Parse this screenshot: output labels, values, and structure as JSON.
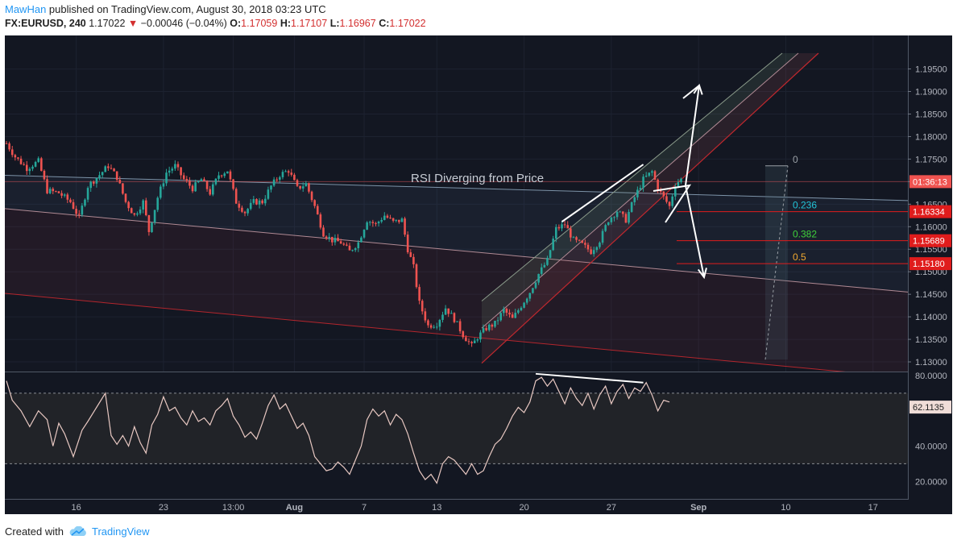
{
  "header": {
    "author": "MawHan",
    "published_text": "published on TradingView.com, August 30, 2018 03:23 UTC",
    "symbol": "FX:EURUSD, 240",
    "last": "1.17022",
    "change": "−0.00046 (−0.04%)",
    "ohlc": [
      {
        "label": "O:",
        "value": "1.17059"
      },
      {
        "label": "H:",
        "value": "1.17107"
      },
      {
        "label": "L:",
        "value": "1.16967"
      },
      {
        "label": "C:",
        "value": "1.17022"
      }
    ]
  },
  "footer": {
    "created_with": "Created with",
    "brand": "TradingView"
  },
  "chart_data": {
    "type": "candlestick",
    "symbol": "EURUSD",
    "interval": "240",
    "price_axis": {
      "ticks": [
        "1.19500",
        "1.19000",
        "1.18500",
        "1.18000",
        "1.17500",
        "1.17000",
        "1.16500",
        "1.16000",
        "1.15500",
        "1.15000",
        "1.14500",
        "1.14000",
        "1.13500",
        "1.13000"
      ],
      "range": [
        1.1275,
        1.1985
      ]
    },
    "price_labels": [
      {
        "value": 1.17,
        "text": "01:36:13",
        "color": "#ef5350"
      },
      {
        "value": 1.16334,
        "text": "1.16334",
        "color": "#e01c1c"
      },
      {
        "value": 1.15689,
        "text": "1.15689",
        "color": "#e01c1c"
      },
      {
        "value": 1.1518,
        "text": "1.15180",
        "color": "#e01c1c"
      }
    ],
    "rsi": {
      "ticks": [
        "80.0000",
        "40.0000",
        "20.0000"
      ],
      "range": [
        16,
        80
      ],
      "bands": [
        70,
        30
      ],
      "current": {
        "value": 62.1135,
        "text": "62.1135"
      }
    },
    "x_axis": {
      "labels": [
        {
          "text": "16",
          "index": 24
        },
        {
          "text": "23",
          "index": 54
        },
        {
          "text": "13:00",
          "index": 78
        },
        {
          "text": "Aug",
          "index": 99,
          "bold": true
        },
        {
          "text": "7",
          "index": 123
        },
        {
          "text": "13",
          "index": 148
        },
        {
          "text": "20",
          "index": 178
        },
        {
          "text": "27",
          "index": 208
        },
        {
          "text": "Sep",
          "index": 238,
          "bold": true
        },
        {
          "text": "10",
          "index": 268
        },
        {
          "text": "17",
          "index": 298
        }
      ]
    },
    "price_path": [
      [
        0,
        1.1785
      ],
      [
        3,
        1.1755
      ],
      [
        7,
        1.173
      ],
      [
        11,
        1.1745
      ],
      [
        14,
        1.168
      ],
      [
        18,
        1.1675
      ],
      [
        22,
        1.1655
      ],
      [
        25,
        1.162
      ],
      [
        28,
        1.169
      ],
      [
        32,
        1.1715
      ],
      [
        35,
        1.1735
      ],
      [
        38,
        1.171
      ],
      [
        41,
        1.1655
      ],
      [
        44,
        1.1625
      ],
      [
        47,
        1.1655
      ],
      [
        49,
        1.159
      ],
      [
        52,
        1.1665
      ],
      [
        55,
        1.172
      ],
      [
        58,
        1.1735
      ],
      [
        61,
        1.1705
      ],
      [
        64,
        1.1685
      ],
      [
        67,
        1.1705
      ],
      [
        70,
        1.1675
      ],
      [
        73,
        1.1715
      ],
      [
        76,
        1.1725
      ],
      [
        79,
        1.1655
      ],
      [
        82,
        1.1632
      ],
      [
        85,
        1.1655
      ],
      [
        88,
        1.1655
      ],
      [
        91,
        1.169
      ],
      [
        94,
        1.1715
      ],
      [
        97,
        1.1725
      ],
      [
        100,
        1.1685
      ],
      [
        103,
        1.1695
      ],
      [
        106,
        1.1645
      ],
      [
        109,
        1.1585
      ],
      [
        112,
        1.157
      ],
      [
        115,
        1.1565
      ],
      [
        118,
        1.1545
      ],
      [
        121,
        1.1565
      ],
      [
        124,
        1.1615
      ],
      [
        127,
        1.1605
      ],
      [
        130,
        1.1625
      ],
      [
        133,
        1.161
      ],
      [
        136,
        1.1615
      ],
      [
        138,
        1.155
      ],
      [
        140,
        1.151
      ],
      [
        142,
        1.143
      ],
      [
        145,
        1.138
      ],
      [
        148,
        1.1385
      ],
      [
        151,
        1.142
      ],
      [
        154,
        1.1395
      ],
      [
        157,
        1.136
      ],
      [
        160,
        1.1335
      ],
      [
        162,
        1.1355
      ],
      [
        165,
        1.1375
      ],
      [
        168,
        1.1385
      ],
      [
        171,
        1.1415
      ],
      [
        174,
        1.1395
      ],
      [
        177,
        1.1425
      ],
      [
        180,
        1.1455
      ],
      [
        183,
        1.1495
      ],
      [
        186,
        1.1525
      ],
      [
        189,
        1.1595
      ],
      [
        192,
        1.1605
      ],
      [
        195,
        1.157
      ],
      [
        198,
        1.156
      ],
      [
        201,
        1.1545
      ],
      [
        204,
        1.157
      ],
      [
        207,
        1.1615
      ],
      [
        210,
        1.1635
      ],
      [
        213,
        1.1615
      ],
      [
        216,
        1.1665
      ],
      [
        219,
        1.1705
      ],
      [
        222,
        1.1722
      ],
      [
        224,
        1.1685
      ],
      [
        226,
        1.1665
      ],
      [
        228,
        1.1645
      ],
      [
        230,
        1.1695
      ],
      [
        232,
        1.1705
      ]
    ],
    "rsi_path": [
      [
        0,
        77
      ],
      [
        2,
        66
      ],
      [
        5,
        60
      ],
      [
        8,
        51
      ],
      [
        11,
        60
      ],
      [
        14,
        55
      ],
      [
        16,
        40
      ],
      [
        18,
        53
      ],
      [
        20,
        47
      ],
      [
        23,
        34
      ],
      [
        26,
        49
      ],
      [
        28,
        54
      ],
      [
        31,
        62
      ],
      [
        34,
        70
      ],
      [
        36,
        46
      ],
      [
        38,
        41
      ],
      [
        40,
        46
      ],
      [
        42,
        40
      ],
      [
        44,
        51
      ],
      [
        46,
        42
      ],
      [
        48,
        36
      ],
      [
        50,
        52
      ],
      [
        52,
        58
      ],
      [
        54,
        68
      ],
      [
        56,
        60
      ],
      [
        58,
        62
      ],
      [
        60,
        56
      ],
      [
        62,
        52
      ],
      [
        64,
        60
      ],
      [
        66,
        54
      ],
      [
        68,
        56
      ],
      [
        70,
        52
      ],
      [
        72,
        60
      ],
      [
        74,
        63
      ],
      [
        76,
        67
      ],
      [
        78,
        57
      ],
      [
        80,
        52
      ],
      [
        82,
        45
      ],
      [
        84,
        48
      ],
      [
        86,
        44
      ],
      [
        88,
        53
      ],
      [
        90,
        63
      ],
      [
        92,
        69
      ],
      [
        94,
        61
      ],
      [
        96,
        64
      ],
      [
        98,
        57
      ],
      [
        100,
        50
      ],
      [
        102,
        53
      ],
      [
        104,
        46
      ],
      [
        106,
        34
      ],
      [
        108,
        30
      ],
      [
        110,
        26
      ],
      [
        112,
        27
      ],
      [
        114,
        31
      ],
      [
        116,
        28
      ],
      [
        118,
        24
      ],
      [
        120,
        32
      ],
      [
        122,
        40
      ],
      [
        124,
        55
      ],
      [
        126,
        61
      ],
      [
        128,
        57
      ],
      [
        130,
        60
      ],
      [
        132,
        52
      ],
      [
        134,
        58
      ],
      [
        136,
        55
      ],
      [
        138,
        47
      ],
      [
        140,
        36
      ],
      [
        142,
        26
      ],
      [
        144,
        21
      ],
      [
        146,
        24
      ],
      [
        148,
        19
      ],
      [
        150,
        30
      ],
      [
        152,
        34
      ],
      [
        154,
        32
      ],
      [
        156,
        28
      ],
      [
        158,
        24
      ],
      [
        160,
        30
      ],
      [
        162,
        24
      ],
      [
        164,
        26
      ],
      [
        166,
        34
      ],
      [
        168,
        41
      ],
      [
        170,
        44
      ],
      [
        172,
        50
      ],
      [
        174,
        57
      ],
      [
        176,
        62
      ],
      [
        178,
        59
      ],
      [
        180,
        65
      ],
      [
        182,
        77
      ],
      [
        184,
        79
      ],
      [
        186,
        74
      ],
      [
        188,
        78
      ],
      [
        190,
        71
      ],
      [
        192,
        64
      ],
      [
        194,
        73
      ],
      [
        196,
        67
      ],
      [
        198,
        63
      ],
      [
        200,
        70
      ],
      [
        202,
        61
      ],
      [
        204,
        69
      ],
      [
        206,
        74
      ],
      [
        208,
        64
      ],
      [
        210,
        71
      ],
      [
        212,
        75
      ],
      [
        214,
        67
      ],
      [
        216,
        73
      ],
      [
        218,
        71
      ],
      [
        220,
        76
      ],
      [
        222,
        69
      ],
      [
        224,
        60
      ],
      [
        226,
        66
      ],
      [
        228,
        65
      ]
    ],
    "fib_levels": [
      {
        "label": "0",
        "value": 1.1735,
        "color": "#9aa0a6"
      },
      {
        "label": "0.236",
        "value": 1.16334,
        "color": "#22c4d8"
      },
      {
        "label": "0.382",
        "value": 1.15689,
        "color": "#3fd13b"
      },
      {
        "label": "0.5",
        "value": 1.1518,
        "color": "#f0a830"
      }
    ],
    "annotations": [
      {
        "text": "RSI Diverging from Price"
      }
    ]
  }
}
